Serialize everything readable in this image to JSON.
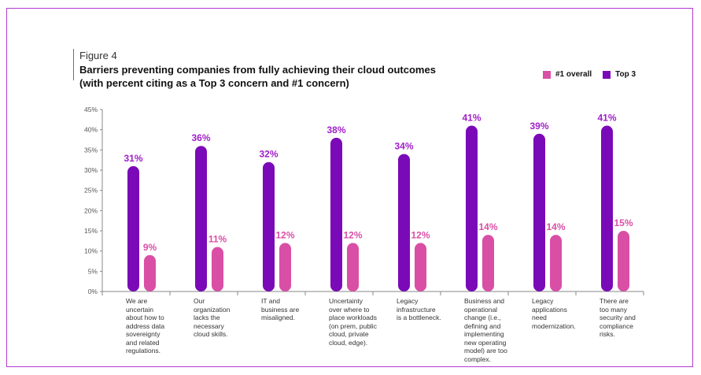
{
  "figure_label": "Figure 4",
  "title_line1": "Barriers preventing companies from fully achieving their cloud outcomes",
  "title_line2": "(with percent citing as a Top 3 concern and #1 concern)",
  "colors": {
    "overall": "#d94fa6",
    "top3": "#7a0ab8",
    "frame": "#b43ad0",
    "axis": "#888888"
  },
  "chart_data": {
    "type": "bar",
    "title": "Barriers preventing companies from fully achieving their cloud outcomes (with percent citing as a Top 3 concern and #1 concern)",
    "categories": [
      "We are uncertain about how to address data sovereignty and related regulations.",
      "Our organization lacks the necessary cloud skills.",
      "IT and business are misaligned.",
      "Uncertainty over where to place workloads (on prem, public cloud, private cloud, edge).",
      "Legacy infrastructure is a bottleneck.",
      "Business and operational change (i.e., defining and implementing new operating model) are too complex.",
      "Legacy applications need modernization.",
      "There are too many security and compliance risks."
    ],
    "category_lines": [
      [
        "We are",
        "uncertain",
        "about how to",
        "address data",
        "sovereignty",
        "and related",
        "regulations."
      ],
      [
        "Our",
        "organization",
        "lacks the",
        "necessary",
        "cloud skills."
      ],
      [
        "IT and",
        "business are",
        "misaligned."
      ],
      [
        "Uncertainty",
        "over where to",
        "place workloads",
        "(on prem, public",
        "cloud, private",
        "cloud, edge)."
      ],
      [
        "Legacy",
        "infrastructure",
        "is a bottleneck."
      ],
      [
        "Business and",
        "operational",
        "change (i.e.,",
        "defining and",
        "implementing",
        "new operating",
        "model) are too",
        "complex."
      ],
      [
        "Legacy",
        "applications",
        "need",
        "modernization."
      ],
      [
        "There are",
        "too many",
        "security and",
        "compliance",
        "risks."
      ]
    ],
    "series": [
      {
        "name": "Top 3",
        "values": [
          31,
          36,
          32,
          38,
          34,
          41,
          39,
          41
        ],
        "labels": [
          "31%",
          "36%",
          "32%",
          "38%",
          "34%",
          "41%",
          "39%",
          "41%"
        ]
      },
      {
        "name": "#1 overall",
        "values": [
          9,
          11,
          12,
          12,
          12,
          14,
          14,
          15
        ],
        "labels": [
          "9%",
          "11%",
          "12%",
          "12%",
          "12%",
          "14%",
          "14%",
          "15%"
        ]
      }
    ],
    "ylim": [
      0,
      45
    ],
    "yticks": [
      "0%",
      "5%",
      "10%",
      "15%",
      "20%",
      "25%",
      "30%",
      "35%",
      "40%",
      "45%"
    ],
    "grid": false,
    "legend_position": "top-right"
  }
}
